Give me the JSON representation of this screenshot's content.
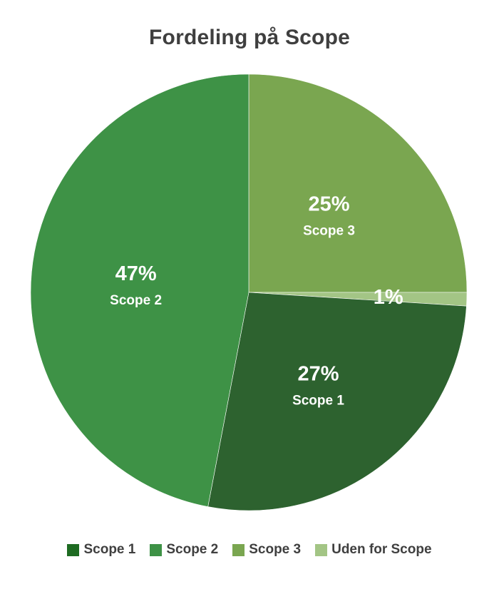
{
  "chart_data": {
    "type": "pie",
    "title": "Fordeling på Scope",
    "legend_position": "bottom",
    "slices": [
      {
        "name": "Scope 3",
        "value": 25,
        "label": "25%",
        "category_label": "Scope 3",
        "color": "#7aa650"
      },
      {
        "name": "Uden for Scope",
        "value": 1,
        "label": "1%",
        "category_label": "",
        "color": "#a3c585"
      },
      {
        "name": "Scope 1",
        "value": 27,
        "label": "27%",
        "category_label": "Scope 1",
        "color": "#2d622f"
      },
      {
        "name": "Scope 2",
        "value": 47,
        "label": "47%",
        "category_label": "Scope 2",
        "color": "#3e9246"
      }
    ]
  },
  "legend": {
    "items": [
      {
        "label": "Scope 1",
        "color": "#1e6b22"
      },
      {
        "label": "Scope 2",
        "color": "#3e9246"
      },
      {
        "label": "Scope 3",
        "color": "#7aa650"
      },
      {
        "label": "Uden for Scope",
        "color": "#a3c585"
      }
    ]
  }
}
